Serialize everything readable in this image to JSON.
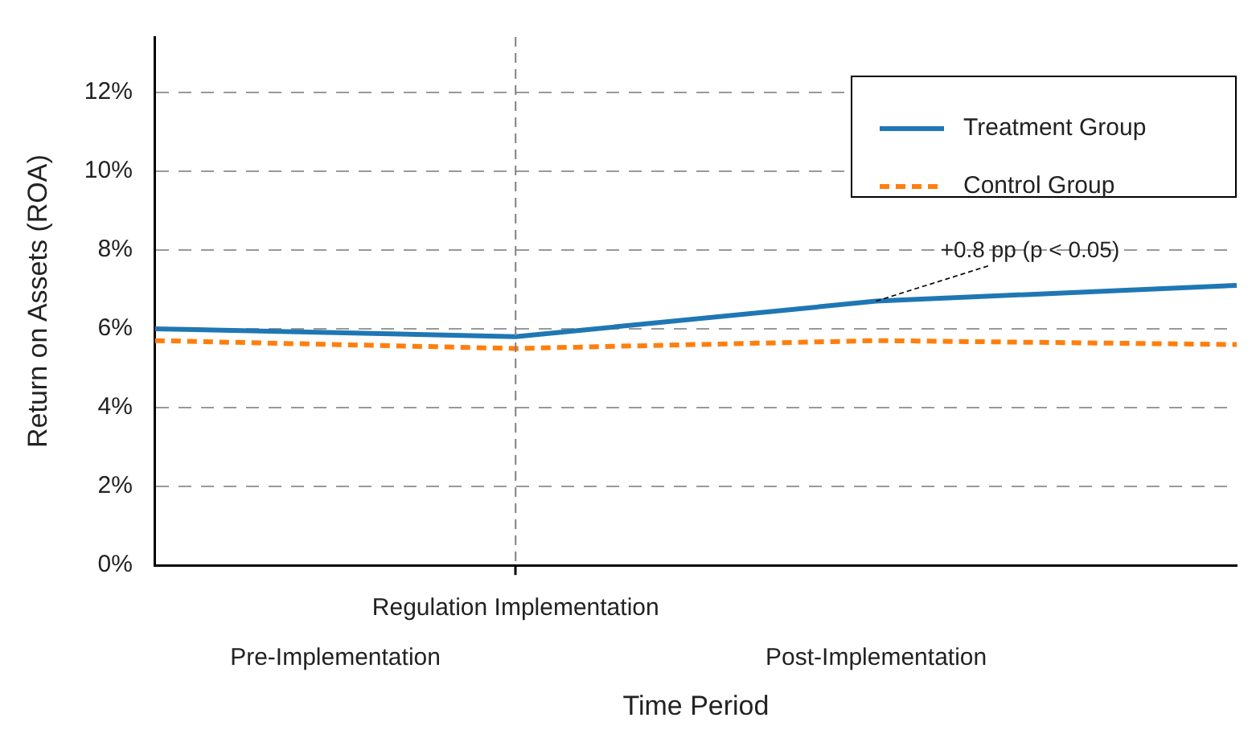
{
  "chart_data": {
    "type": "line",
    "xlabel": "Time Period",
    "ylabel": "Return on Assets (ROA)",
    "categories": [
      null,
      "Regulation Implementation",
      null,
      null
    ],
    "ylim": [
      0,
      13.4
    ],
    "yticks": [
      {
        "value": 0,
        "label": "0%"
      },
      {
        "value": 2,
        "label": "2%"
      },
      {
        "value": 4,
        "label": "4%"
      },
      {
        "value": 6,
        "label": "6%"
      },
      {
        "value": 8,
        "label": "8%"
      },
      {
        "value": 10,
        "label": "10%"
      },
      {
        "value": 12,
        "label": "12%"
      }
    ],
    "grid": "y",
    "legend": "top right",
    "marker": "none",
    "series": [
      {
        "name": "Treatment Group",
        "color": "#1f77b4",
        "line_style": "solid",
        "values": [
          6.0,
          5.8,
          6.7,
          7.1
        ]
      },
      {
        "name": "Control Group",
        "color": "#ff7f0e",
        "line_style": "dashed",
        "values": [
          5.7,
          5.5,
          5.7,
          5.6
        ]
      }
    ],
    "ref_lines": [
      {
        "axis": "x",
        "value": "Regulation Implementation",
        "color": "#808080",
        "line_style": "dashed"
      }
    ],
    "annotations": [
      "Pre-Implementation",
      "Post-Implementation",
      {
        "text": "+0.8 pp (p < 0.05)",
        "y": 6.7
      }
    ]
  }
}
